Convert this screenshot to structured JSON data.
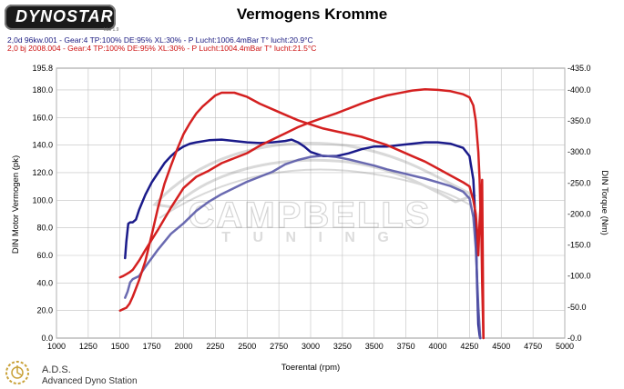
{
  "header": {
    "logo_text": "DYNOSTAR",
    "logo_sub": "Lbs 1.9",
    "title": "Vermogens Kromme",
    "run1": "2,0d 96kw.001 - Gear:4 TP:100% DE:95% XL:30%   - P Lucht:1006.4mBar T° lucht:20.9°C",
    "run2": "2,0 bj 2008.004 - Gear:4 TP:100% DE:95% XL:30%    - P Lucht:1004.4mBar T° lucht:21.5°C"
  },
  "footer": {
    "company": "A.D.S.",
    "description": "Advanced Dyno Station"
  },
  "watermark": {
    "line1": "CAMPBELLS",
    "line2": "T U N I N G"
  },
  "colors": {
    "blue": "#1a1a8a",
    "red": "#d42020",
    "grid": "#c0c0c0"
  },
  "chart_data": {
    "type": "line",
    "xlabel": "Toerental (rpm)",
    "ylabel_left": "DIN Motor Vermogen (pk)",
    "ylabel_right": "DIN Torque (Nm)",
    "xlim": [
      1000,
      5000
    ],
    "ylim_left": [
      0,
      195.8
    ],
    "ylim_right": [
      0,
      435
    ],
    "x_ticks": [
      "1000",
      "1250",
      "1500",
      "1750",
      "2000",
      "2250",
      "2500",
      "2750",
      "3000",
      "3250",
      "3500",
      "3750",
      "4000",
      "4250",
      "4500",
      "4750",
      "5000"
    ],
    "y_left_ticks": [
      "0.0",
      "20.0",
      "40.0",
      "60.0",
      "80.0",
      "100.0",
      "120.0",
      "140.0",
      "160.0",
      "180.0",
      "195.8"
    ],
    "y_left_values": [
      0,
      20,
      40,
      60,
      80,
      100,
      120,
      140,
      160,
      180,
      195.8
    ],
    "y_right_ticks": [
      "-0.0",
      "-50.0",
      "-100.0",
      "-150.0",
      "-200.0",
      "-250.0",
      "-300.0",
      "-350.0",
      "-400.0",
      "-435.0"
    ],
    "y_right_values": [
      0,
      50,
      100,
      150,
      200,
      250,
      300,
      350,
      400,
      435
    ],
    "series": [
      {
        "axis": "left",
        "color": "#1a1a8a",
        "width": 2.5,
        "x": [
          1540,
          1550,
          1565,
          1580,
          1600,
          1625,
          1650,
          1700,
          1750,
          1800,
          1850,
          1900,
          1950,
          2000,
          2050,
          2100,
          2200,
          2300,
          2400,
          2500,
          2600,
          2700,
          2800,
          2850,
          2900,
          2950,
          3000,
          3100,
          3200,
          3300,
          3400,
          3500,
          3600,
          3700,
          3800,
          3900,
          4000,
          4100,
          4200,
          4250,
          4280,
          4300,
          4310,
          4320,
          4330,
          4335
        ],
        "y": [
          58,
          70,
          83,
          84,
          84,
          86,
          93,
          104,
          113,
          120,
          127,
          132,
          136,
          139,
          141,
          142,
          143.5,
          144,
          143,
          142,
          141.5,
          142,
          143,
          144,
          142,
          139,
          135,
          132,
          132,
          134,
          137,
          139,
          139,
          140,
          141,
          142,
          142,
          141,
          138,
          132,
          115,
          80,
          40,
          10,
          2,
          0
        ]
      },
      {
        "axis": "right",
        "color": "#5a5aa8",
        "width": 2.5,
        "x": [
          1540,
          1560,
          1580,
          1600,
          1650,
          1700,
          1800,
          1900,
          2000,
          2100,
          2200,
          2300,
          2400,
          2500,
          2600,
          2700,
          2800,
          2900,
          3000,
          3100,
          3200,
          3300,
          3400,
          3500,
          3600,
          3700,
          3800,
          3900,
          4000,
          4100,
          4200,
          4250,
          4280,
          4300,
          4320,
          4335
        ],
        "y": [
          65,
          75,
          90,
          95,
          100,
          115,
          143,
          168,
          185,
          205,
          220,
          232,
          242,
          252,
          260,
          268,
          280,
          287,
          292,
          294,
          292,
          288,
          283,
          278,
          272,
          267,
          262,
          257,
          251,
          245,
          236,
          225,
          195,
          145,
          50,
          0
        ]
      },
      {
        "axis": "left",
        "color": "#d42020",
        "width": 2.5,
        "x": [
          1500,
          1525,
          1550,
          1575,
          1600,
          1650,
          1700,
          1750,
          1800,
          1850,
          1900,
          1950,
          2000,
          2050,
          2100,
          2150,
          2200,
          2250,
          2300,
          2400,
          2500,
          2600,
          2700,
          2800,
          2900,
          3000,
          3100,
          3200,
          3300,
          3400,
          3500,
          3600,
          3700,
          3800,
          3900,
          4000,
          4100,
          4200,
          4250,
          4280,
          4300,
          4310,
          4320,
          4330,
          4340,
          4350,
          4360
        ],
        "y": [
          20,
          21,
          22,
          25,
          30,
          42,
          56,
          75,
          95,
          112,
          125,
          137,
          148,
          156,
          163,
          168,
          172,
          176,
          178,
          178,
          175,
          170,
          166,
          162,
          158,
          155,
          152,
          150,
          148,
          146,
          143,
          140,
          136,
          132,
          128,
          123,
          118,
          113,
          110,
          100,
          90,
          78,
          60,
          85,
          100,
          40,
          0
        ]
      },
      {
        "axis": "right",
        "color": "#d42020",
        "width": 2.5,
        "x": [
          1500,
          1525,
          1550,
          1575,
          1600,
          1650,
          1700,
          1800,
          1900,
          2000,
          2100,
          2200,
          2300,
          2400,
          2500,
          2600,
          2700,
          2800,
          2900,
          3000,
          3100,
          3200,
          3300,
          3400,
          3500,
          3600,
          3700,
          3800,
          3900,
          4000,
          4100,
          4200,
          4250,
          4280,
          4300,
          4320,
          4330,
          4340,
          4350,
          4360
        ],
        "y": [
          98,
          100,
          103,
          106,
          110,
          125,
          142,
          175,
          210,
          242,
          260,
          270,
          282,
          290,
          298,
          310,
          320,
          330,
          340,
          348,
          355,
          362,
          370,
          378,
          385,
          391,
          395,
          399,
          401,
          400,
          398,
          393,
          388,
          375,
          350,
          300,
          255,
          180,
          255,
          0
        ]
      }
    ]
  }
}
